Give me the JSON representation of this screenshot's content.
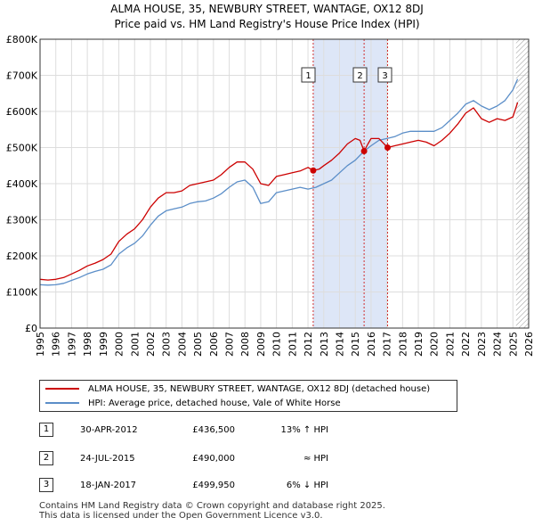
{
  "title_line1": "ALMA HOUSE, 35, NEWBURY STREET, WANTAGE, OX12 8DJ",
  "title_line2": "Price paid vs. HM Land Registry's House Price Index (HPI)",
  "colors": {
    "price_paid": "#cc0000",
    "hpi": "#5b8ec8",
    "highlight": "#dde6f7",
    "hatch": "#999999",
    "vline": "#d03030",
    "grid": "#dddddd"
  },
  "chart_data": {
    "type": "line",
    "title": "ALMA HOUSE, 35, NEWBURY STREET, WANTAGE, OX12 8DJ",
    "subtitle": "Price paid vs. HM Land Registry's House Price Index (HPI)",
    "xlabel": "",
    "ylabel": "",
    "xlim": [
      1995,
      2026
    ],
    "ylim": [
      0,
      800000
    ],
    "grid": true,
    "x_ticks": [
      1995,
      1996,
      1997,
      1998,
      1999,
      2000,
      2001,
      2002,
      2003,
      2004,
      2005,
      2006,
      2007,
      2008,
      2009,
      2010,
      2011,
      2012,
      2013,
      2014,
      2015,
      2016,
      2017,
      2018,
      2019,
      2020,
      2021,
      2022,
      2023,
      2024,
      2025,
      2026
    ],
    "y_ticks": [
      {
        "value": 0,
        "label": "£0"
      },
      {
        "value": 100000,
        "label": "£100K"
      },
      {
        "value": 200000,
        "label": "£200K"
      },
      {
        "value": 300000,
        "label": "£300K"
      },
      {
        "value": 400000,
        "label": "£400K"
      },
      {
        "value": 500000,
        "label": "£500K"
      },
      {
        "value": 600000,
        "label": "£600K"
      },
      {
        "value": 700000,
        "label": "£700K"
      },
      {
        "value": 800000,
        "label": "£800K"
      }
    ],
    "highlight_range": [
      2012.33,
      2017.05
    ],
    "hatched_range": [
      2025.2,
      2026
    ],
    "series": [
      {
        "name": "ALMA HOUSE, 35, NEWBURY STREET, WANTAGE, OX12 8DJ (detached house)",
        "color": "#cc0000",
        "x": [
          1995,
          1995.5,
          1996,
          1996.5,
          1997,
          1997.5,
          1998,
          1998.5,
          1999,
          1999.5,
          2000,
          2000.5,
          2001,
          2001.5,
          2002,
          2002.5,
          2003,
          2003.5,
          2004,
          2004.5,
          2005,
          2005.5,
          2006,
          2006.5,
          2007,
          2007.5,
          2008,
          2008.5,
          2009,
          2009.5,
          2010,
          2010.5,
          2011,
          2011.5,
          2012,
          2012.33,
          2012.7,
          2013,
          2013.5,
          2014,
          2014.5,
          2015,
          2015.3,
          2015.56,
          2015.8,
          2016,
          2016.5,
          2017.05,
          2017.5,
          2018,
          2018.5,
          2019,
          2019.5,
          2020,
          2020.5,
          2021,
          2021.5,
          2022,
          2022.5,
          2023,
          2023.5,
          2024,
          2024.5,
          2025,
          2025.3
        ],
        "values": [
          135000,
          133000,
          135000,
          140000,
          150000,
          160000,
          172000,
          180000,
          190000,
          205000,
          240000,
          260000,
          275000,
          300000,
          335000,
          360000,
          375000,
          375000,
          380000,
          395000,
          400000,
          405000,
          410000,
          425000,
          445000,
          460000,
          460000,
          440000,
          400000,
          395000,
          420000,
          425000,
          430000,
          435000,
          445000,
          436500,
          440000,
          450000,
          465000,
          485000,
          510000,
          525000,
          520000,
          490000,
          510000,
          525000,
          525000,
          499950,
          505000,
          510000,
          515000,
          520000,
          515000,
          505000,
          520000,
          540000,
          565000,
          595000,
          610000,
          580000,
          570000,
          580000,
          575000,
          585000,
          625000
        ]
      },
      {
        "name": "HPI: Average price, detached house, Vale of White Horse",
        "color": "#5b8ec8",
        "x": [
          1995,
          1995.5,
          1996,
          1996.5,
          1997,
          1997.5,
          1998,
          1998.5,
          1999,
          1999.5,
          2000,
          2000.5,
          2001,
          2001.5,
          2002,
          2002.5,
          2003,
          2003.5,
          2004,
          2004.5,
          2005,
          2005.5,
          2006,
          2006.5,
          2007,
          2007.5,
          2008,
          2008.5,
          2009,
          2009.5,
          2010,
          2010.5,
          2011,
          2011.5,
          2012,
          2012.5,
          2013,
          2013.5,
          2014,
          2014.5,
          2015,
          2015.56,
          2016,
          2016.5,
          2017,
          2017.5,
          2018,
          2018.5,
          2019,
          2019.5,
          2020,
          2020.5,
          2021,
          2021.5,
          2022,
          2022.5,
          2023,
          2023.5,
          2024,
          2024.5,
          2025,
          2025.3
        ],
        "values": [
          120000,
          119000,
          120000,
          124000,
          132000,
          140000,
          150000,
          157000,
          163000,
          175000,
          205000,
          222000,
          235000,
          255000,
          285000,
          310000,
          325000,
          330000,
          335000,
          345000,
          350000,
          352000,
          360000,
          372000,
          390000,
          405000,
          410000,
          390000,
          345000,
          350000,
          375000,
          380000,
          385000,
          390000,
          385000,
          390000,
          400000,
          410000,
          430000,
          450000,
          465000,
          490000,
          505000,
          520000,
          525000,
          530000,
          540000,
          545000,
          545000,
          545000,
          545000,
          555000,
          575000,
          595000,
          620000,
          630000,
          615000,
          605000,
          615000,
          630000,
          660000,
          690000
        ]
      }
    ],
    "transactions": [
      {
        "num": "1",
        "date": "30-APR-2012",
        "x": 2012.33,
        "price_label": "£436,500",
        "price": 436500,
        "hpi": "13% ↑ HPI"
      },
      {
        "num": "2",
        "date": "24-JUL-2015",
        "x": 2015.56,
        "price_label": "£490,000",
        "price": 490000,
        "hpi": "≈ HPI"
      },
      {
        "num": "3",
        "date": "18-JAN-2017",
        "x": 2017.05,
        "price_label": "£499,950",
        "price": 499950,
        "hpi": "6% ↓ HPI"
      }
    ]
  },
  "legend": {
    "price_paid_label": "ALMA HOUSE, 35, NEWBURY STREET, WANTAGE, OX12 8DJ (detached house)",
    "hpi_label": "HPI: Average price, detached house, Vale of White Horse"
  },
  "footer_line1": "Contains HM Land Registry data © Crown copyright and database right 2025.",
  "footer_line2": "This data is licensed under the Open Government Licence v3.0."
}
